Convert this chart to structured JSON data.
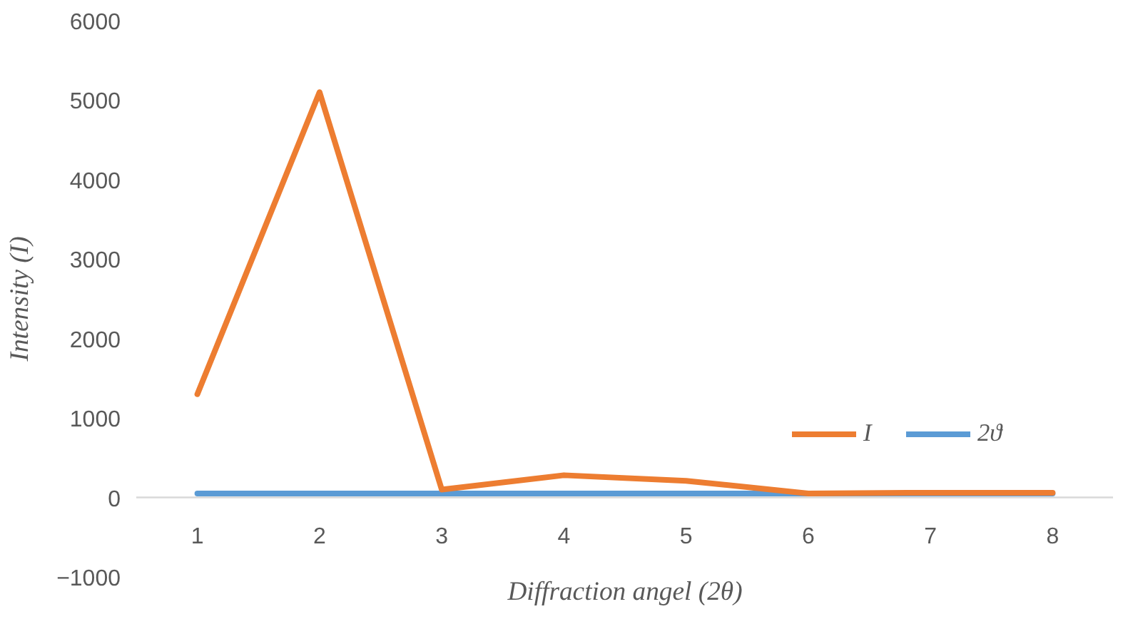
{
  "chart_data": {
    "type": "line",
    "xlabel": "Diffraction angel (2θ)",
    "ylabel": "Intensity (I)",
    "categories": [
      "1",
      "2",
      "3",
      "4",
      "5",
      "6",
      "7",
      "8"
    ],
    "series": [
      {
        "name": "I",
        "color": "#ed7d31",
        "values": [
          1300,
          5100,
          100,
          280,
          210,
          50,
          60,
          60
        ]
      },
      {
        "name": "2ϑ",
        "color": "#5b9bd5",
        "values": [
          50,
          50,
          50,
          50,
          50,
          50,
          50,
          50
        ]
      }
    ],
    "ylim": [
      -1000,
      6000
    ],
    "yticks": [
      -1000,
      0,
      1000,
      2000,
      3000,
      4000,
      5000,
      6000
    ],
    "grid": false,
    "legend": "right"
  }
}
